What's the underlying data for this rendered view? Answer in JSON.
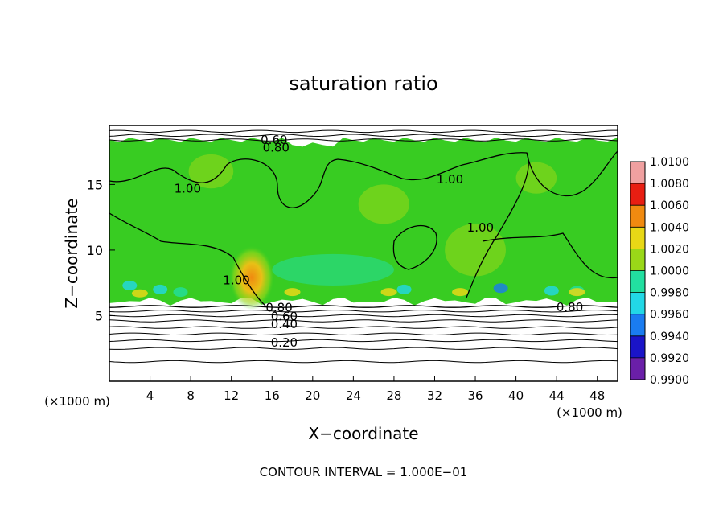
{
  "chart_data": {
    "type": "heatmap",
    "title": "saturation ratio",
    "xlabel": "X−coordinate",
    "ylabel": "Z−coordinate",
    "x_unit": "(×1000 m)",
    "y_unit": "(×1000 m)",
    "footer": "CONTOUR INTERVAL = 1.000E−01",
    "xlim": [
      0,
      50
    ],
    "ylim": [
      0,
      19.5
    ],
    "xticks": [
      4,
      8,
      12,
      16,
      20,
      24,
      28,
      32,
      36,
      40,
      44,
      48
    ],
    "yticks": [
      5,
      10,
      15
    ],
    "colorbar": {
      "levels": [
        0.99,
        0.992,
        0.994,
        0.996,
        0.998,
        1.0,
        1.002,
        1.004,
        1.006,
        1.008,
        1.01
      ],
      "labels": [
        "0.9900",
        "0.9920",
        "0.9940",
        "0.9960",
        "0.9980",
        "1.0000",
        "1.0020",
        "1.0040",
        "1.0060",
        "1.0080",
        "1.0100"
      ],
      "colors": [
        "#6a1fa8",
        "#1a14c8",
        "#1a7cf0",
        "#22d8e6",
        "#22dfa0",
        "#38cc22",
        "#9ad818",
        "#e8d816",
        "#f08a10",
        "#e81e12",
        "#f0a0a0"
      ]
    },
    "shaded_region": {
      "x": [
        0,
        50
      ],
      "z": [
        6.2,
        18.4
      ],
      "dominant_value": 1.0
    },
    "warm_anomaly": {
      "x": 14,
      "z": 7.9,
      "value": 1.005
    },
    "contour_labels": [
      {
        "text": "0.60",
        "x": 16.2,
        "z": 18.4
      },
      {
        "text": "0.80",
        "x": 16.4,
        "z": 17.8
      },
      {
        "text": "1.00",
        "x": 7.7,
        "z": 14.7
      },
      {
        "text": "1.00",
        "x": 33.5,
        "z": 15.4
      },
      {
        "text": "1.00",
        "x": 36.5,
        "z": 11.7
      },
      {
        "text": "1.00",
        "x": 12.5,
        "z": 7.7
      },
      {
        "text": "0.80",
        "x": 16.7,
        "z": 5.6
      },
      {
        "text": "0.60",
        "x": 17.2,
        "z": 4.95
      },
      {
        "text": "0.40",
        "x": 17.2,
        "z": 4.35
      },
      {
        "text": "0.20",
        "x": 17.2,
        "z": 2.95
      },
      {
        "text": "0.80",
        "x": 45.3,
        "z": 5.65
      }
    ],
    "low_contours_z": [
      1.5,
      2.5,
      3.1,
      3.6,
      4.1,
      4.6,
      5.0,
      5.35,
      5.7
    ],
    "top_contours_z": [
      18.4,
      18.75,
      19.05
    ]
  }
}
